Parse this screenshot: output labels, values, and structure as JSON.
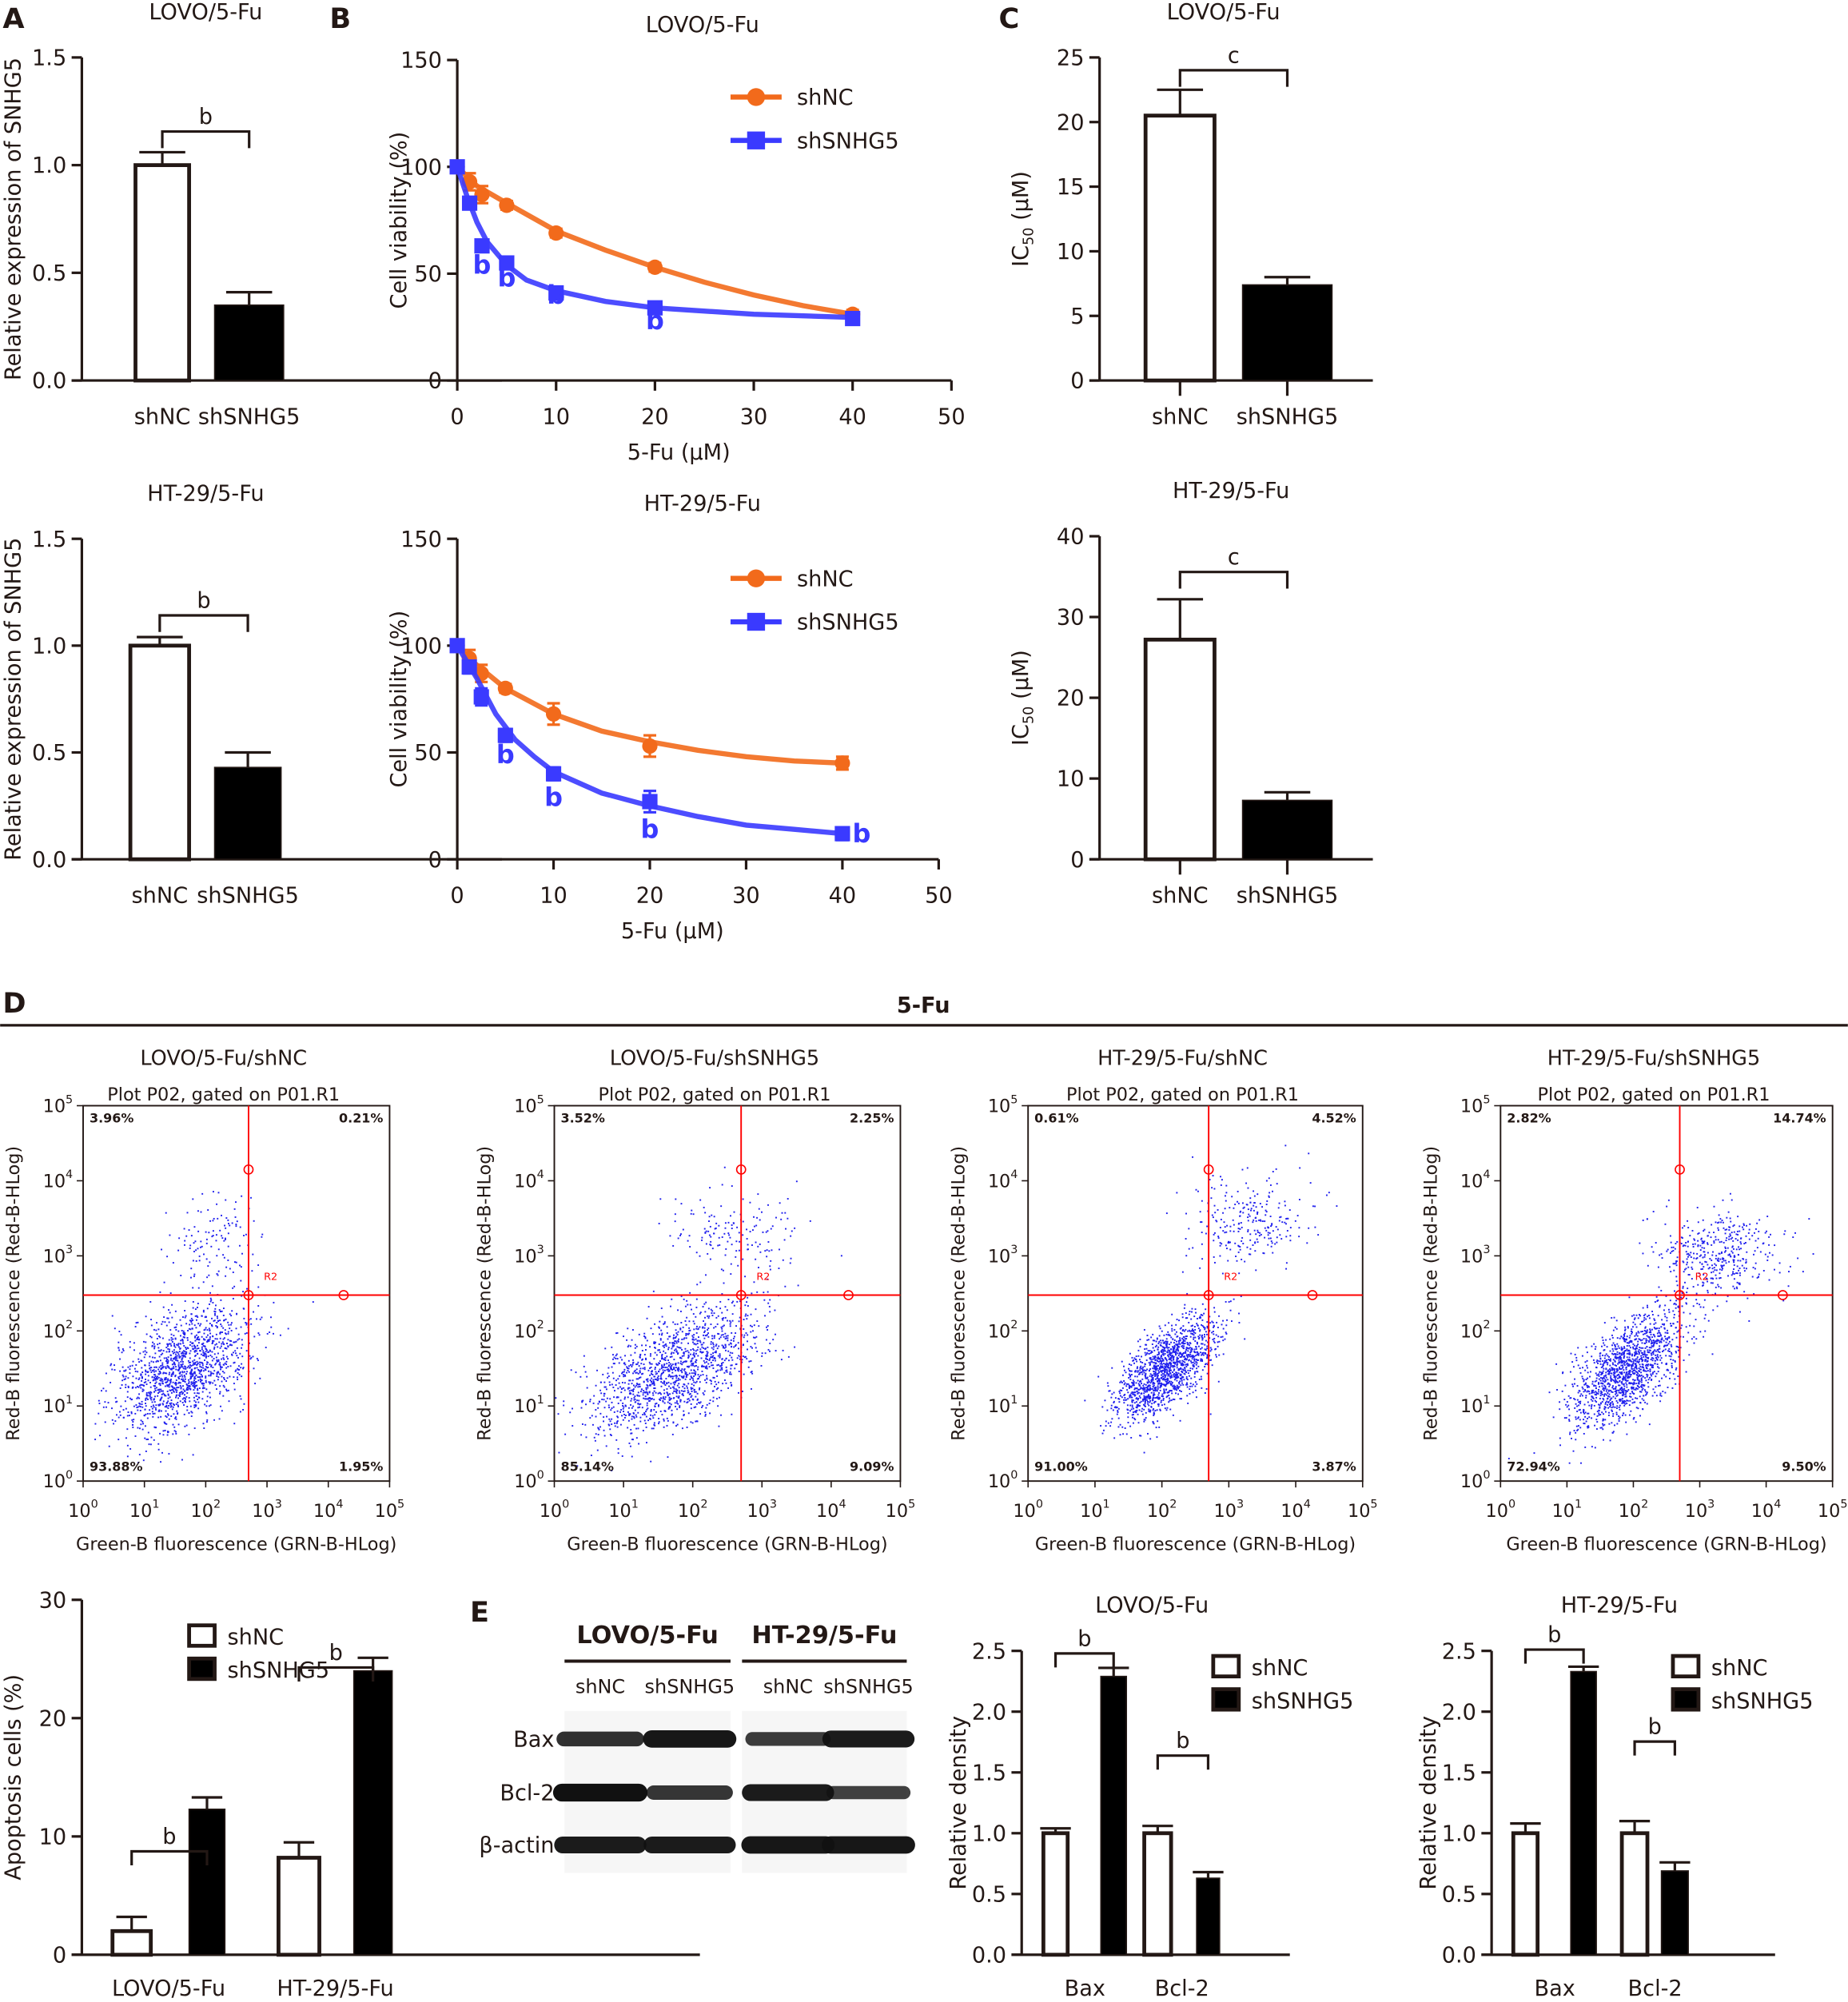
{
  "figure": {
    "panel_letters": [
      "A",
      "B",
      "C",
      "D",
      "E"
    ],
    "section_title_D": "5-Fu"
  },
  "colors": {
    "shNC_line": "#f26a1b",
    "shSNHG5_line": "#3a3aff",
    "bar_open": "#ffffff",
    "bar_filled": "#000000",
    "axis": "#231815",
    "gate": "#ff0000",
    "dots": "#2020ee"
  },
  "chart_data": [
    {
      "id": "A-LOVO",
      "type": "bar",
      "title": "LOVO/5-Fu",
      "ylabel": "Relative expression of SNHG5",
      "xlabel": "",
      "categories": [
        "shNC",
        "shSNHG5"
      ],
      "values": [
        1.0,
        0.35
      ],
      "errors": [
        0.06,
        0.06
      ],
      "fills": [
        "open",
        "filled"
      ],
      "ylim": [
        0,
        1.5
      ],
      "yticks": [
        "0.0",
        "0.5",
        "1.0",
        "1.5"
      ],
      "yticks_values": [
        0,
        0.5,
        1.0,
        1.5
      ],
      "significance": [
        {
          "between": [
            0,
            1
          ],
          "label": "b"
        }
      ]
    },
    {
      "id": "A-HT29",
      "type": "bar",
      "title": "HT-29/5-Fu",
      "ylabel": "Relative expression of SNHG5",
      "xlabel": "",
      "categories": [
        "shNC",
        "shSNHG5"
      ],
      "values": [
        1.0,
        0.43
      ],
      "errors": [
        0.04,
        0.07
      ],
      "fills": [
        "open",
        "filled"
      ],
      "ylim": [
        0,
        1.5
      ],
      "yticks": [
        "0.0",
        "0.5",
        "1.0",
        "1.5"
      ],
      "yticks_values": [
        0,
        0.5,
        1.0,
        1.5
      ],
      "significance": [
        {
          "between": [
            0,
            1
          ],
          "label": "b"
        }
      ]
    },
    {
      "id": "B-LOVO",
      "type": "line",
      "title": "LOVO/5-Fu",
      "xlabel": "5-Fu (μM)",
      "ylabel": "Cell viability (%)",
      "xlim": [
        0,
        50
      ],
      "ylim": [
        0,
        150
      ],
      "xticks": [
        0,
        10,
        20,
        30,
        40,
        50
      ],
      "yticks": [
        0,
        50,
        100,
        150
      ],
      "legend": "top-right",
      "series": [
        {
          "name": "shNC",
          "marker": "circle",
          "x": [
            0,
            1.25,
            2.5,
            5,
            10,
            20,
            40
          ],
          "y": [
            100,
            93,
            87,
            82,
            69,
            53,
            31
          ],
          "err": [
            1,
            4,
            4,
            2,
            2,
            2,
            2
          ],
          "fit": [
            [
              0,
              100
            ],
            [
              2,
              91
            ],
            [
              5,
              83
            ],
            [
              10,
              70
            ],
            [
              15,
              61
            ],
            [
              20,
              53
            ],
            [
              25,
              46
            ],
            [
              30,
              40
            ],
            [
              35,
              35
            ],
            [
              40,
              31
            ]
          ]
        },
        {
          "name": "shSNHG5",
          "marker": "square",
          "x": [
            0,
            1.25,
            2.5,
            5,
            10,
            20,
            40
          ],
          "y": [
            100,
            83,
            63,
            55,
            41,
            34,
            29
          ],
          "err": [
            1,
            2,
            2,
            2,
            2,
            2,
            1
          ],
          "fit": [
            [
              0,
              100
            ],
            [
              1,
              86
            ],
            [
              2,
              74
            ],
            [
              3,
              65
            ],
            [
              5,
              54
            ],
            [
              7,
              47
            ],
            [
              10,
              42
            ],
            [
              15,
              37
            ],
            [
              20,
              34
            ],
            [
              30,
              31
            ],
            [
              40,
              29.5
            ]
          ]
        }
      ],
      "annotations": [
        {
          "text": "b",
          "x": 2.5,
          "y": 50
        },
        {
          "text": "b",
          "x": 5,
          "y": 44
        },
        {
          "text": "b",
          "x": 10,
          "y": 36
        },
        {
          "text": "b",
          "x": 20,
          "y": 24
        }
      ]
    },
    {
      "id": "B-HT29",
      "type": "line",
      "title": "HT-29/5-Fu",
      "xlabel": "5-Fu (μM)",
      "ylabel": "Cell viability (%)",
      "xlim": [
        0,
        50
      ],
      "ylim": [
        0,
        150
      ],
      "xticks": [
        0,
        10,
        20,
        30,
        40,
        50
      ],
      "yticks": [
        0,
        50,
        100,
        150
      ],
      "legend": "top-right",
      "series": [
        {
          "name": "shNC",
          "marker": "circle",
          "x": [
            0,
            1.25,
            2.5,
            5,
            10,
            20,
            40
          ],
          "y": [
            100,
            94,
            87,
            80,
            68,
            53,
            45
          ],
          "err": [
            1,
            4,
            4,
            2,
            5,
            5,
            3
          ],
          "fit": [
            [
              0,
              100
            ],
            [
              2,
              91
            ],
            [
              5,
              80
            ],
            [
              10,
              68
            ],
            [
              15,
              60
            ],
            [
              20,
              55
            ],
            [
              25,
              51
            ],
            [
              30,
              48
            ],
            [
              35,
              46
            ],
            [
              40,
              45
            ]
          ]
        },
        {
          "name": "shSNHG5",
          "marker": "square",
          "x": [
            0,
            1.25,
            2.5,
            5,
            10,
            20,
            40
          ],
          "y": [
            100,
            90,
            76,
            58,
            40,
            27,
            12
          ],
          "err": [
            1,
            3,
            4,
            3,
            3,
            5,
            3
          ],
          "fit": [
            [
              0,
              100
            ],
            [
              2,
              85
            ],
            [
              4,
              68
            ],
            [
              6,
              56
            ],
            [
              8,
              48
            ],
            [
              10,
              41
            ],
            [
              15,
              31
            ],
            [
              20,
              25
            ],
            [
              25,
              20
            ],
            [
              30,
              16
            ],
            [
              35,
              14
            ],
            [
              40,
              12
            ]
          ]
        }
      ],
      "annotations": [
        {
          "text": "b",
          "x": 5,
          "y": 45
        },
        {
          "text": "b",
          "x": 10,
          "y": 25
        },
        {
          "text": "b",
          "x": 20,
          "y": 10
        },
        {
          "text": "b",
          "x": 42,
          "y": 8
        }
      ]
    },
    {
      "id": "C-LOVO",
      "type": "bar",
      "title": "LOVO/5-Fu",
      "ylabel": "IC50 (μM)",
      "ylabel_main": "IC",
      "ylabel_sub": "50",
      "ylabel_unit": " (μM)",
      "xlabel": "",
      "categories": [
        "shNC",
        "shSNHG5"
      ],
      "values": [
        20.5,
        7.4
      ],
      "errors": [
        2.0,
        0.6
      ],
      "fills": [
        "open",
        "filled"
      ],
      "ylim": [
        0,
        25
      ],
      "yticks": [
        "0",
        "5",
        "10",
        "15",
        "20",
        "25"
      ],
      "yticks_values": [
        0,
        5,
        10,
        15,
        20,
        25
      ],
      "significance": [
        {
          "between": [
            0,
            1
          ],
          "label": "c"
        }
      ]
    },
    {
      "id": "C-HT29",
      "type": "bar",
      "title": "HT-29/5-Fu",
      "ylabel": "IC50 (μM)",
      "ylabel_main": "IC",
      "ylabel_sub": "50",
      "ylabel_unit": " (μM)",
      "xlabel": "",
      "categories": [
        "shNC",
        "shSNHG5"
      ],
      "values": [
        27.2,
        7.3
      ],
      "errors": [
        5.0,
        1.0
      ],
      "fills": [
        "open",
        "filled"
      ],
      "ylim": [
        0,
        40
      ],
      "yticks": [
        "0",
        "10",
        "20",
        "30",
        "40"
      ],
      "yticks_values": [
        0,
        10,
        20,
        30,
        40
      ],
      "significance": [
        {
          "between": [
            0,
            1
          ],
          "label": "c"
        }
      ]
    },
    {
      "id": "D-flow",
      "type": "scatter",
      "plots": [
        {
          "title": "LOVO/5-Fu/shNC",
          "subtitle": "Plot P02, gated on P01.R1",
          "quadrants": {
            "UL": "3.96%",
            "UR": "0.21%",
            "LL": "93.88%",
            "LR": "1.95%"
          },
          "cluster": {
            "logx": 1.6,
            "logy": 1.5,
            "sx": 0.55,
            "sy": 0.38,
            "tilt": 0.35
          },
          "upper": {
            "logx": 2.2,
            "logy": 3.2,
            "n": 120
          }
        },
        {
          "title": "LOVO/5-Fu/shSNHG5",
          "subtitle": "Plot P02, gated on P01.R1",
          "quadrants": {
            "UL": "3.52%",
            "UR": "2.25%",
            "LL": "85.14%",
            "LR": "9.09%"
          },
          "cluster": {
            "logx": 1.7,
            "logy": 1.45,
            "sx": 0.6,
            "sy": 0.36,
            "tilt": 0.4
          },
          "upper": {
            "logx": 2.6,
            "logy": 3.3,
            "n": 160
          }
        },
        {
          "title": "HT-29/5-Fu/shNC",
          "subtitle": "Plot P02, gated on P01.R1",
          "quadrants": {
            "UL": "0.61%",
            "UR": "4.52%",
            "LL": "91.00%",
            "LR": "3.87%"
          },
          "cluster": {
            "logx": 2.05,
            "logy": 1.5,
            "sx": 0.38,
            "sy": 0.26,
            "tilt": 0.6
          },
          "upper": {
            "logx": 3.3,
            "logy": 3.5,
            "n": 260
          }
        },
        {
          "title": "HT-29/5-Fu/shSNHG5",
          "subtitle": "Plot P02, gated on P01.R1",
          "quadrants": {
            "UL": "2.82%",
            "UR": "14.74%",
            "LL": "72.94%",
            "LR": "9.50%"
          },
          "cluster": {
            "logx": 1.9,
            "logy": 1.5,
            "sx": 0.42,
            "sy": 0.3,
            "tilt": 0.6
          },
          "upper": {
            "logx": 3.2,
            "logy": 3.05,
            "n": 420
          }
        }
      ],
      "xlabel": "Green-B fluorescence (GRN-B-HLog)",
      "ylabel": "Red-B fluorescence (Red-B-HLog)",
      "gate_label": "R2",
      "gate": {
        "x": 500,
        "y": 300
      },
      "ticks": [
        "0",
        "1",
        "2",
        "3",
        "4",
        "5"
      ],
      "tick_base": "10",
      "xlim_log": [
        0,
        5
      ],
      "ylim_log": [
        0,
        5
      ]
    },
    {
      "id": "D-apoptosis",
      "type": "bar",
      "title": "",
      "ylabel": "Apoptosis cells (%)",
      "xlabel": "",
      "categories": [
        "LOVO/5-Fu",
        "HT-29/5-Fu"
      ],
      "series": [
        {
          "name": "shNC",
          "fill": "open",
          "values": [
            2.0,
            8.2
          ],
          "errors": [
            1.2,
            1.3
          ]
        },
        {
          "name": "shSNHG5",
          "fill": "filled",
          "values": [
            12.3,
            24.0
          ],
          "errors": [
            1.0,
            1.1
          ]
        }
      ],
      "ylim": [
        0,
        30
      ],
      "yticks": [
        "0",
        "10",
        "20",
        "30"
      ],
      "yticks_values": [
        0,
        10,
        20,
        30
      ],
      "legend": "top-left",
      "significance": [
        {
          "group": 0,
          "label": "b"
        },
        {
          "group": 1,
          "label": "b"
        }
      ]
    },
    {
      "id": "E-LOVO",
      "type": "bar",
      "title": "LOVO/5-Fu",
      "ylabel": "Relative density",
      "xlabel": "",
      "categories": [
        "Bax",
        "Bcl-2"
      ],
      "series": [
        {
          "name": "shNC",
          "fill": "open",
          "values": [
            1.0,
            1.0
          ],
          "errors": [
            0.04,
            0.06
          ]
        },
        {
          "name": "shSNHG5",
          "fill": "filled",
          "values": [
            2.29,
            0.63
          ],
          "errors": [
            0.07,
            0.05
          ]
        }
      ],
      "ylim": [
        0,
        2.5
      ],
      "yticks": [
        "0.0",
        "0.5",
        "1.0",
        "1.5",
        "2.0",
        "2.5"
      ],
      "yticks_values": [
        0,
        0.5,
        1.0,
        1.5,
        2.0,
        2.5
      ],
      "legend": "top-right",
      "significance": [
        {
          "group": 0,
          "label": "b"
        },
        {
          "group": 1,
          "label": "b"
        }
      ]
    },
    {
      "id": "E-HT29",
      "type": "bar",
      "title": "HT-29/5-Fu",
      "ylabel": "Relative density",
      "xlabel": "",
      "categories": [
        "Bax",
        "Bcl-2"
      ],
      "series": [
        {
          "name": "shNC",
          "fill": "open",
          "values": [
            1.0,
            1.0
          ],
          "errors": [
            0.08,
            0.1
          ]
        },
        {
          "name": "shSNHG5",
          "fill": "filled",
          "values": [
            2.33,
            0.69
          ],
          "errors": [
            0.04,
            0.07
          ]
        }
      ],
      "ylim": [
        0,
        2.5
      ],
      "yticks": [
        "0.0",
        "0.5",
        "1.0",
        "1.5",
        "2.0",
        "2.5"
      ],
      "yticks_values": [
        0,
        0.5,
        1.0,
        1.5,
        2.0,
        2.5
      ],
      "legend": "top-right",
      "significance": [
        {
          "group": 0,
          "label": "b"
        },
        {
          "group": 1,
          "label": "b"
        }
      ]
    }
  ],
  "western_blot": {
    "groups": [
      "LOVO/5-Fu",
      "HT-29/5-Fu"
    ],
    "lanes": [
      "shNC",
      "shSNHG5",
      "shNC",
      "shSNHG5"
    ],
    "rows": [
      {
        "label": "Bax",
        "intensity": [
          0.7,
          0.95,
          0.6,
          0.9
        ]
      },
      {
        "label": "Bcl-2",
        "intensity": [
          1.0,
          0.65,
          0.9,
          0.55
        ]
      },
      {
        "label": "β-actin",
        "intensity": [
          0.9,
          0.9,
          0.95,
          0.95
        ]
      }
    ]
  }
}
